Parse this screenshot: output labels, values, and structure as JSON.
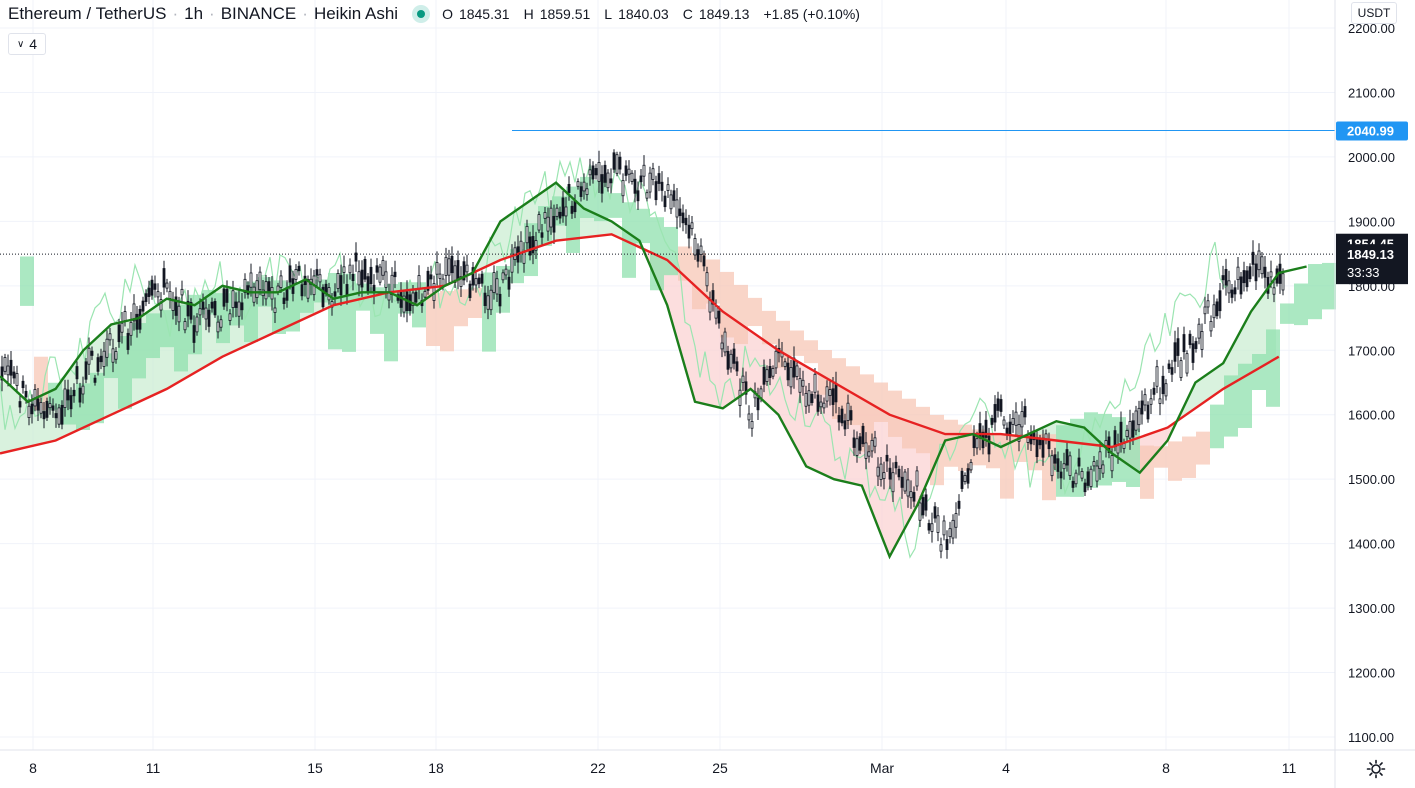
{
  "header": {
    "symbol": "Ethereum / TetherUS",
    "interval": "1h",
    "exchange": "BINANCE",
    "chart_style": "Heikin Ashi",
    "ohlc": {
      "open_label": "O",
      "open": "1845.31",
      "high_label": "H",
      "high": "1859.51",
      "low_label": "L",
      "low": "1840.03",
      "close_label": "C",
      "close": "1849.13",
      "change": "+1.85 (+0.10%)"
    }
  },
  "indicator_toggle": {
    "label": "4",
    "icon": "chevron-down-icon"
  },
  "currency_button": {
    "label": "USDT"
  },
  "settings_button": {
    "icon": "gear-icon"
  },
  "price_axis": {
    "ticks": [
      "2200.00",
      "2100.00",
      "2000.00",
      "1900.00",
      "1800.00",
      "1700.00",
      "1600.00",
      "1500.00",
      "1400.00",
      "1300.00",
      "1200.00",
      "1100.00"
    ],
    "tick_values": [
      2200,
      2100,
      2000,
      1900,
      1800,
      1700,
      1600,
      1500,
      1400,
      1300,
      1200,
      1100
    ]
  },
  "price_labels": {
    "horizontal_line": {
      "value": 2040.99,
      "text": "2040.99",
      "color": "#2196f3"
    },
    "high_label": {
      "value": 1854.45,
      "text": "1854.45"
    },
    "last_price": {
      "value": 1849.13,
      "text": "1849.13",
      "countdown": "33:33"
    }
  },
  "time_axis": {
    "ticks": [
      "8",
      "11",
      "15",
      "18",
      "22",
      "25",
      "Mar",
      "4",
      "8",
      "11"
    ]
  },
  "colors": {
    "candle": "#131722",
    "ma_fast": "#1b7e1b",
    "ma_slow": "#e62222",
    "lagging_span": "#9be5b1",
    "cloud_bull": "#8fe0ad",
    "cloud_bear": "#f7c7b5",
    "band_bull": "#c9ecd0",
    "band_bear": "#fbd0d0",
    "hline": "#2196f3",
    "label_bg": "#131722",
    "grid": "#f0f3fa"
  },
  "chart_data": {
    "type": "candlestick",
    "title": "Ethereum / TetherUS",
    "x_ticks": [
      "8",
      "11",
      "15",
      "18",
      "22",
      "25",
      "Mar",
      "4",
      "8",
      "11"
    ],
    "ylim": [
      1080,
      2230
    ],
    "close_path": [
      [
        0,
        1680
      ],
      [
        0.02,
        1620
      ],
      [
        0.04,
        1600
      ],
      [
        0.06,
        1660
      ],
      [
        0.08,
        1700
      ],
      [
        0.1,
        1760
      ],
      [
        0.12,
        1800
      ],
      [
        0.14,
        1740
      ],
      [
        0.16,
        1760
      ],
      [
        0.18,
        1800
      ],
      [
        0.2,
        1780
      ],
      [
        0.22,
        1820
      ],
      [
        0.24,
        1790
      ],
      [
        0.26,
        1830
      ],
      [
        0.28,
        1800
      ],
      [
        0.3,
        1780
      ],
      [
        0.32,
        1820
      ],
      [
        0.34,
        1800
      ],
      [
        0.36,
        1790
      ],
      [
        0.38,
        1860
      ],
      [
        0.4,
        1920
      ],
      [
        0.42,
        1950
      ],
      [
        0.44,
        1980
      ],
      [
        0.46,
        1960
      ],
      [
        0.48,
        1940
      ],
      [
        0.5,
        1870
      ],
      [
        0.52,
        1720
      ],
      [
        0.54,
        1600
      ],
      [
        0.56,
        1680
      ],
      [
        0.58,
        1640
      ],
      [
        0.6,
        1620
      ],
      [
        0.62,
        1550
      ],
      [
        0.64,
        1520
      ],
      [
        0.66,
        1480
      ],
      [
        0.68,
        1400
      ],
      [
        0.7,
        1540
      ],
      [
        0.72,
        1600
      ],
      [
        0.74,
        1580
      ],
      [
        0.76,
        1520
      ],
      [
        0.78,
        1500
      ],
      [
        0.8,
        1540
      ],
      [
        0.82,
        1600
      ],
      [
        0.84,
        1660
      ],
      [
        0.86,
        1720
      ],
      [
        0.88,
        1790
      ],
      [
        0.9,
        1840
      ],
      [
        0.92,
        1810
      ],
      [
        0.94,
        1850
      ]
    ],
    "ma_fast_path": [
      [
        0,
        1660
      ],
      [
        0.02,
        1620
      ],
      [
        0.04,
        1640
      ],
      [
        0.06,
        1700
      ],
      [
        0.08,
        1740
      ],
      [
        0.1,
        1750
      ],
      [
        0.12,
        1780
      ],
      [
        0.14,
        1770
      ],
      [
        0.16,
        1800
      ],
      [
        0.18,
        1790
      ],
      [
        0.2,
        1790
      ],
      [
        0.22,
        1810
      ],
      [
        0.24,
        1780
      ],
      [
        0.26,
        1790
      ],
      [
        0.28,
        1790
      ],
      [
        0.3,
        1770
      ],
      [
        0.32,
        1800
      ],
      [
        0.34,
        1820
      ],
      [
        0.36,
        1900
      ],
      [
        0.38,
        1930
      ],
      [
        0.4,
        1960
      ],
      [
        0.42,
        1920
      ],
      [
        0.44,
        1900
      ],
      [
        0.46,
        1870
      ],
      [
        0.48,
        1770
      ],
      [
        0.5,
        1620
      ],
      [
        0.52,
        1610
      ],
      [
        0.54,
        1640
      ],
      [
        0.56,
        1600
      ],
      [
        0.58,
        1520
      ],
      [
        0.6,
        1500
      ],
      [
        0.62,
        1490
      ],
      [
        0.64,
        1380
      ],
      [
        0.66,
        1460
      ],
      [
        0.68,
        1560
      ],
      [
        0.7,
        1570
      ],
      [
        0.72,
        1550
      ],
      [
        0.74,
        1570
      ],
      [
        0.76,
        1590
      ],
      [
        0.78,
        1580
      ],
      [
        0.8,
        1540
      ],
      [
        0.82,
        1510
      ],
      [
        0.84,
        1560
      ],
      [
        0.86,
        1650
      ],
      [
        0.88,
        1680
      ],
      [
        0.9,
        1760
      ],
      [
        0.92,
        1820
      ],
      [
        0.94,
        1830
      ]
    ],
    "ma_slow_path": [
      [
        0,
        1540
      ],
      [
        0.04,
        1560
      ],
      [
        0.08,
        1600
      ],
      [
        0.12,
        1640
      ],
      [
        0.16,
        1690
      ],
      [
        0.2,
        1730
      ],
      [
        0.24,
        1770
      ],
      [
        0.28,
        1790
      ],
      [
        0.32,
        1800
      ],
      [
        0.36,
        1840
      ],
      [
        0.4,
        1870
      ],
      [
        0.44,
        1880
      ],
      [
        0.48,
        1840
      ],
      [
        0.52,
        1760
      ],
      [
        0.56,
        1700
      ],
      [
        0.6,
        1650
      ],
      [
        0.64,
        1600
      ],
      [
        0.68,
        1570
      ],
      [
        0.72,
        1570
      ],
      [
        0.76,
        1560
      ],
      [
        0.8,
        1550
      ],
      [
        0.84,
        1580
      ],
      [
        0.88,
        1640
      ],
      [
        0.92,
        1690
      ]
    ],
    "series": [
      {
        "name": "",
        "type": "candlestick"
      }
    ]
  }
}
